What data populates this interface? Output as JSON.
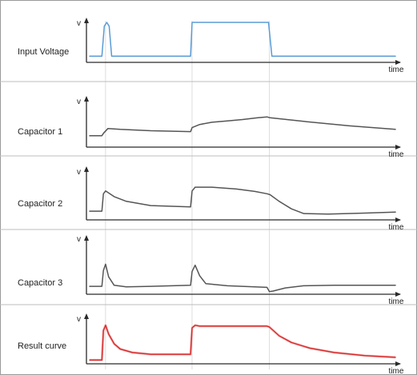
{
  "chart_data": [
    {
      "type": "line",
      "row_label": "Input Voltage",
      "ylabel": "v",
      "xlabel": "time",
      "color": "#5b9bd5",
      "x": [
        0,
        4,
        4.8,
        5.6,
        6.4,
        7.2,
        8.2,
        33,
        33.5,
        58.5,
        59.6,
        100
      ],
      "y": [
        0.12,
        0.12,
        0.9,
        1.0,
        0.9,
        0.12,
        0.12,
        0.12,
        1.0,
        1.0,
        0.12,
        0.12
      ]
    },
    {
      "type": "line",
      "row_label": "Capacitor 1",
      "ylabel": "v",
      "xlabel": "time",
      "color": "#555555",
      "x": [
        0,
        4,
        4.6,
        6,
        10,
        20,
        33,
        33.5,
        36,
        40,
        45,
        50,
        55,
        58,
        59,
        70,
        85,
        100
      ],
      "y": [
        0.22,
        0.22,
        0.28,
        0.38,
        0.36,
        0.33,
        0.31,
        0.4,
        0.47,
        0.52,
        0.55,
        0.58,
        0.62,
        0.64,
        0.62,
        0.54,
        0.44,
        0.36
      ]
    },
    {
      "type": "line",
      "row_label": "Capacitor 2",
      "ylabel": "v",
      "xlabel": "time",
      "color": "#555555",
      "x": [
        0,
        4,
        4.5,
        5.2,
        8,
        12,
        20,
        33,
        33.5,
        34.5,
        40,
        48,
        54,
        58,
        59,
        62,
        66,
        70,
        78,
        90,
        100
      ],
      "y": [
        0.15,
        0.15,
        0.52,
        0.58,
        0.46,
        0.36,
        0.27,
        0.24,
        0.58,
        0.66,
        0.66,
        0.62,
        0.57,
        0.52,
        0.5,
        0.36,
        0.2,
        0.1,
        0.09,
        0.11,
        0.13
      ]
    },
    {
      "type": "line",
      "row_label": "Capacitor 3",
      "ylabel": "v",
      "xlabel": "time",
      "color": "#555555",
      "x": [
        0,
        4,
        4.5,
        5.2,
        6.2,
        8,
        12,
        20,
        33,
        33.5,
        34.5,
        36,
        38,
        45,
        58,
        58.8,
        60,
        64,
        70,
        80,
        100
      ],
      "y": [
        0.12,
        0.12,
        0.42,
        0.54,
        0.3,
        0.14,
        0.11,
        0.12,
        0.14,
        0.4,
        0.52,
        0.32,
        0.17,
        0.13,
        0.1,
        0.02,
        0.03,
        0.09,
        0.13,
        0.14,
        0.14
      ]
    },
    {
      "type": "line",
      "row_label": "Result curve",
      "ylabel": "v",
      "xlabel": "time",
      "color": "#d92b2b",
      "x": [
        0,
        4,
        4.5,
        5.2,
        6.2,
        8,
        10,
        14,
        20,
        33,
        33.5,
        34.5,
        36,
        45,
        58,
        58.8,
        62,
        66,
        72,
        80,
        90,
        100
      ],
      "y": [
        0.05,
        0.05,
        0.72,
        0.84,
        0.64,
        0.42,
        0.3,
        0.22,
        0.18,
        0.18,
        0.78,
        0.84,
        0.82,
        0.82,
        0.82,
        0.8,
        0.6,
        0.45,
        0.32,
        0.22,
        0.15,
        0.11
      ]
    }
  ]
}
